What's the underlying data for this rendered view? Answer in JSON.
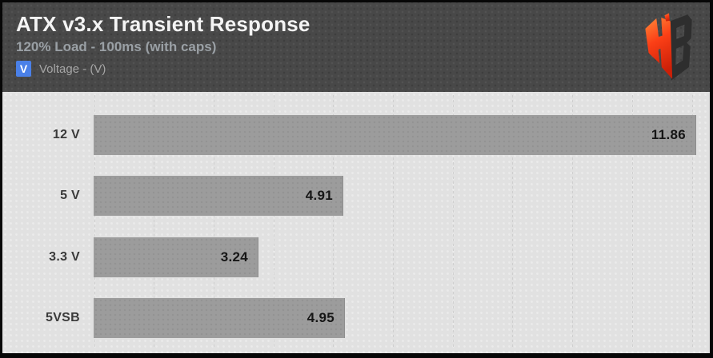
{
  "header": {
    "title": "ATX v3.x Transient Response",
    "subtitle": "120% Load - 100ms (with caps)",
    "legend": {
      "swatch_letter": "V",
      "label": "Voltage - (V)"
    },
    "logo_letters": "HB"
  },
  "colors": {
    "header_bg": "#484848",
    "plot_bg": "#e1e1e1",
    "bar": "#9c9c9c",
    "legend_swatch": "#4a80e8",
    "value_text": "#161616",
    "logo_red": "#f03c16",
    "logo_dark": "#2e2e2e"
  },
  "chart_data": {
    "type": "bar",
    "orientation": "horizontal",
    "title": "ATX v3.x Transient Response",
    "subtitle": "120% Load - 100ms (with caps)",
    "legend": [
      "Voltage - (V)"
    ],
    "categories": [
      "12 V",
      "5 V",
      "3.3 V",
      "5VSB"
    ],
    "values": [
      11.86,
      4.91,
      3.24,
      4.95
    ],
    "value_labels": [
      "11.86",
      "4.91",
      "3.24",
      "4.95"
    ],
    "unit": "V",
    "xlim": [
      0,
      12.08
    ],
    "grid": "vertical",
    "gridline_count": 11,
    "value_labels_position": "inside-end"
  }
}
